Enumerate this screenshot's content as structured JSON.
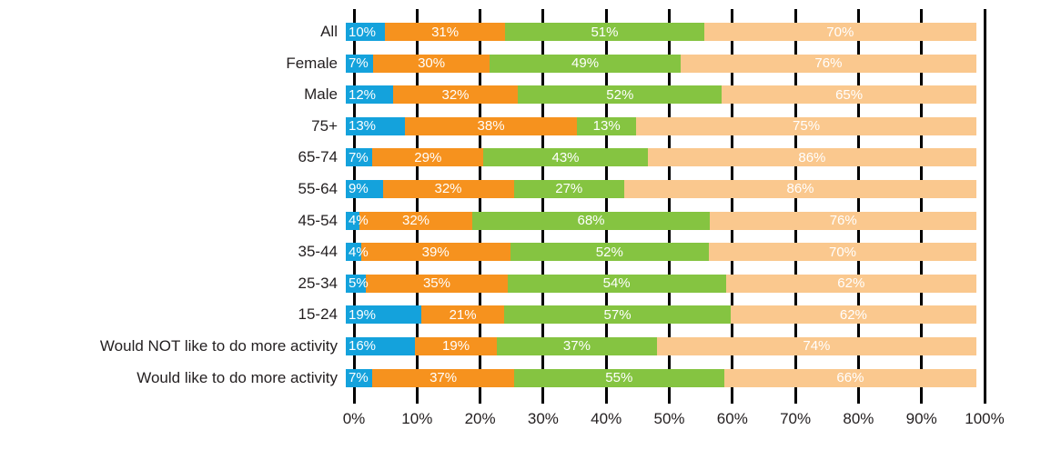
{
  "chart_data": {
    "type": "bar",
    "orientation": "horizontal",
    "stacked": "percent-normalized",
    "title": "",
    "legend": false,
    "grid": true,
    "value_label_suffix": "%",
    "categories": [
      "All",
      "Female",
      "Male",
      "75+",
      "65-74",
      "55-64",
      "45-54",
      "35-44",
      "25-34",
      "15-24",
      "Would NOT like to do more activity",
      "Would like to do more activity"
    ],
    "series": [
      {
        "name": "blue-segment",
        "color": "#14A2DC",
        "values": [
          10,
          7,
          12,
          13,
          7,
          9,
          4,
          4,
          5,
          19,
          16,
          7
        ]
      },
      {
        "name": "orange-segment",
        "color": "#F6921E",
        "values": [
          31,
          30,
          32,
          38,
          29,
          32,
          32,
          39,
          35,
          21,
          19,
          37
        ]
      },
      {
        "name": "green-segment",
        "color": "#85C441",
        "values": [
          51,
          49,
          52,
          13,
          43,
          27,
          68,
          52,
          54,
          57,
          37,
          55
        ]
      },
      {
        "name": "peach-segment",
        "color": "#FAC88E",
        "values": [
          70,
          76,
          65,
          75,
          86,
          86,
          76,
          70,
          62,
          62,
          74,
          66
        ]
      }
    ],
    "x_axis": {
      "range": [
        0,
        100
      ],
      "tick_labels": [
        "0%",
        "10%",
        "20%",
        "30%",
        "40%",
        "50%",
        "60%",
        "70%",
        "80%",
        "90%",
        "100%"
      ]
    },
    "gridline_color": "#000000",
    "axis_text_color": "#231F20",
    "bar_label_text_color": "#FFFFFF"
  }
}
